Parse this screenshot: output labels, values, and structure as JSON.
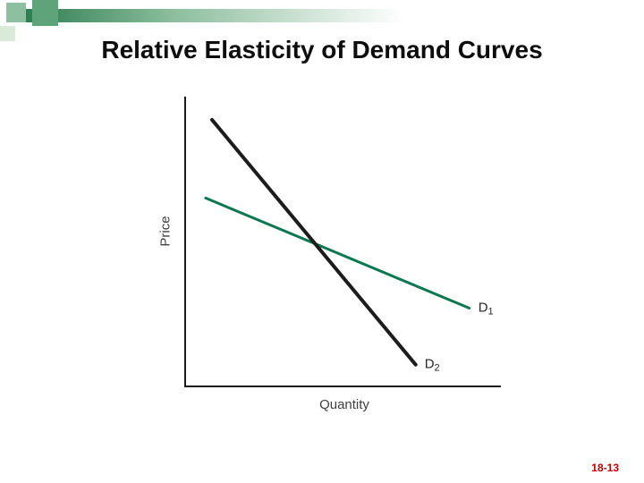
{
  "slide": {
    "title": "Relative Elasticity of Demand Curves",
    "page_number": "18-13",
    "page_number_color": "#c00000"
  },
  "decoration": {
    "square1_color": "#5ea379",
    "square2_color": "#8cc0a0",
    "square3_color": "#d9ead9",
    "bar_color_start": "#2e7d52",
    "bar_color_mid": "#8ebf9f",
    "bar_color_end": "#ffffff"
  },
  "chart_data": {
    "type": "line",
    "title": "",
    "xlabel": "Quantity",
    "ylabel": "Price",
    "xlim": [
      0,
      10
    ],
    "ylim": [
      0,
      10
    ],
    "grid": false,
    "legend": "none",
    "axes_color": "#1a1a1a",
    "series": [
      {
        "name": "D1",
        "label_text": "D",
        "label_sub": "1",
        "description": "relatively elastic (flatter) demand curve",
        "color": "#0b7850",
        "width": 3,
        "x": [
          0.65,
          9.0
        ],
        "y": [
          6.5,
          2.7
        ]
      },
      {
        "name": "D2",
        "label_text": "D",
        "label_sub": "2",
        "description": "relatively inelastic (steeper) demand curve",
        "color": "#1c1c1c",
        "width": 4,
        "x": [
          0.85,
          7.3
        ],
        "y": [
          9.2,
          0.75
        ]
      }
    ]
  }
}
